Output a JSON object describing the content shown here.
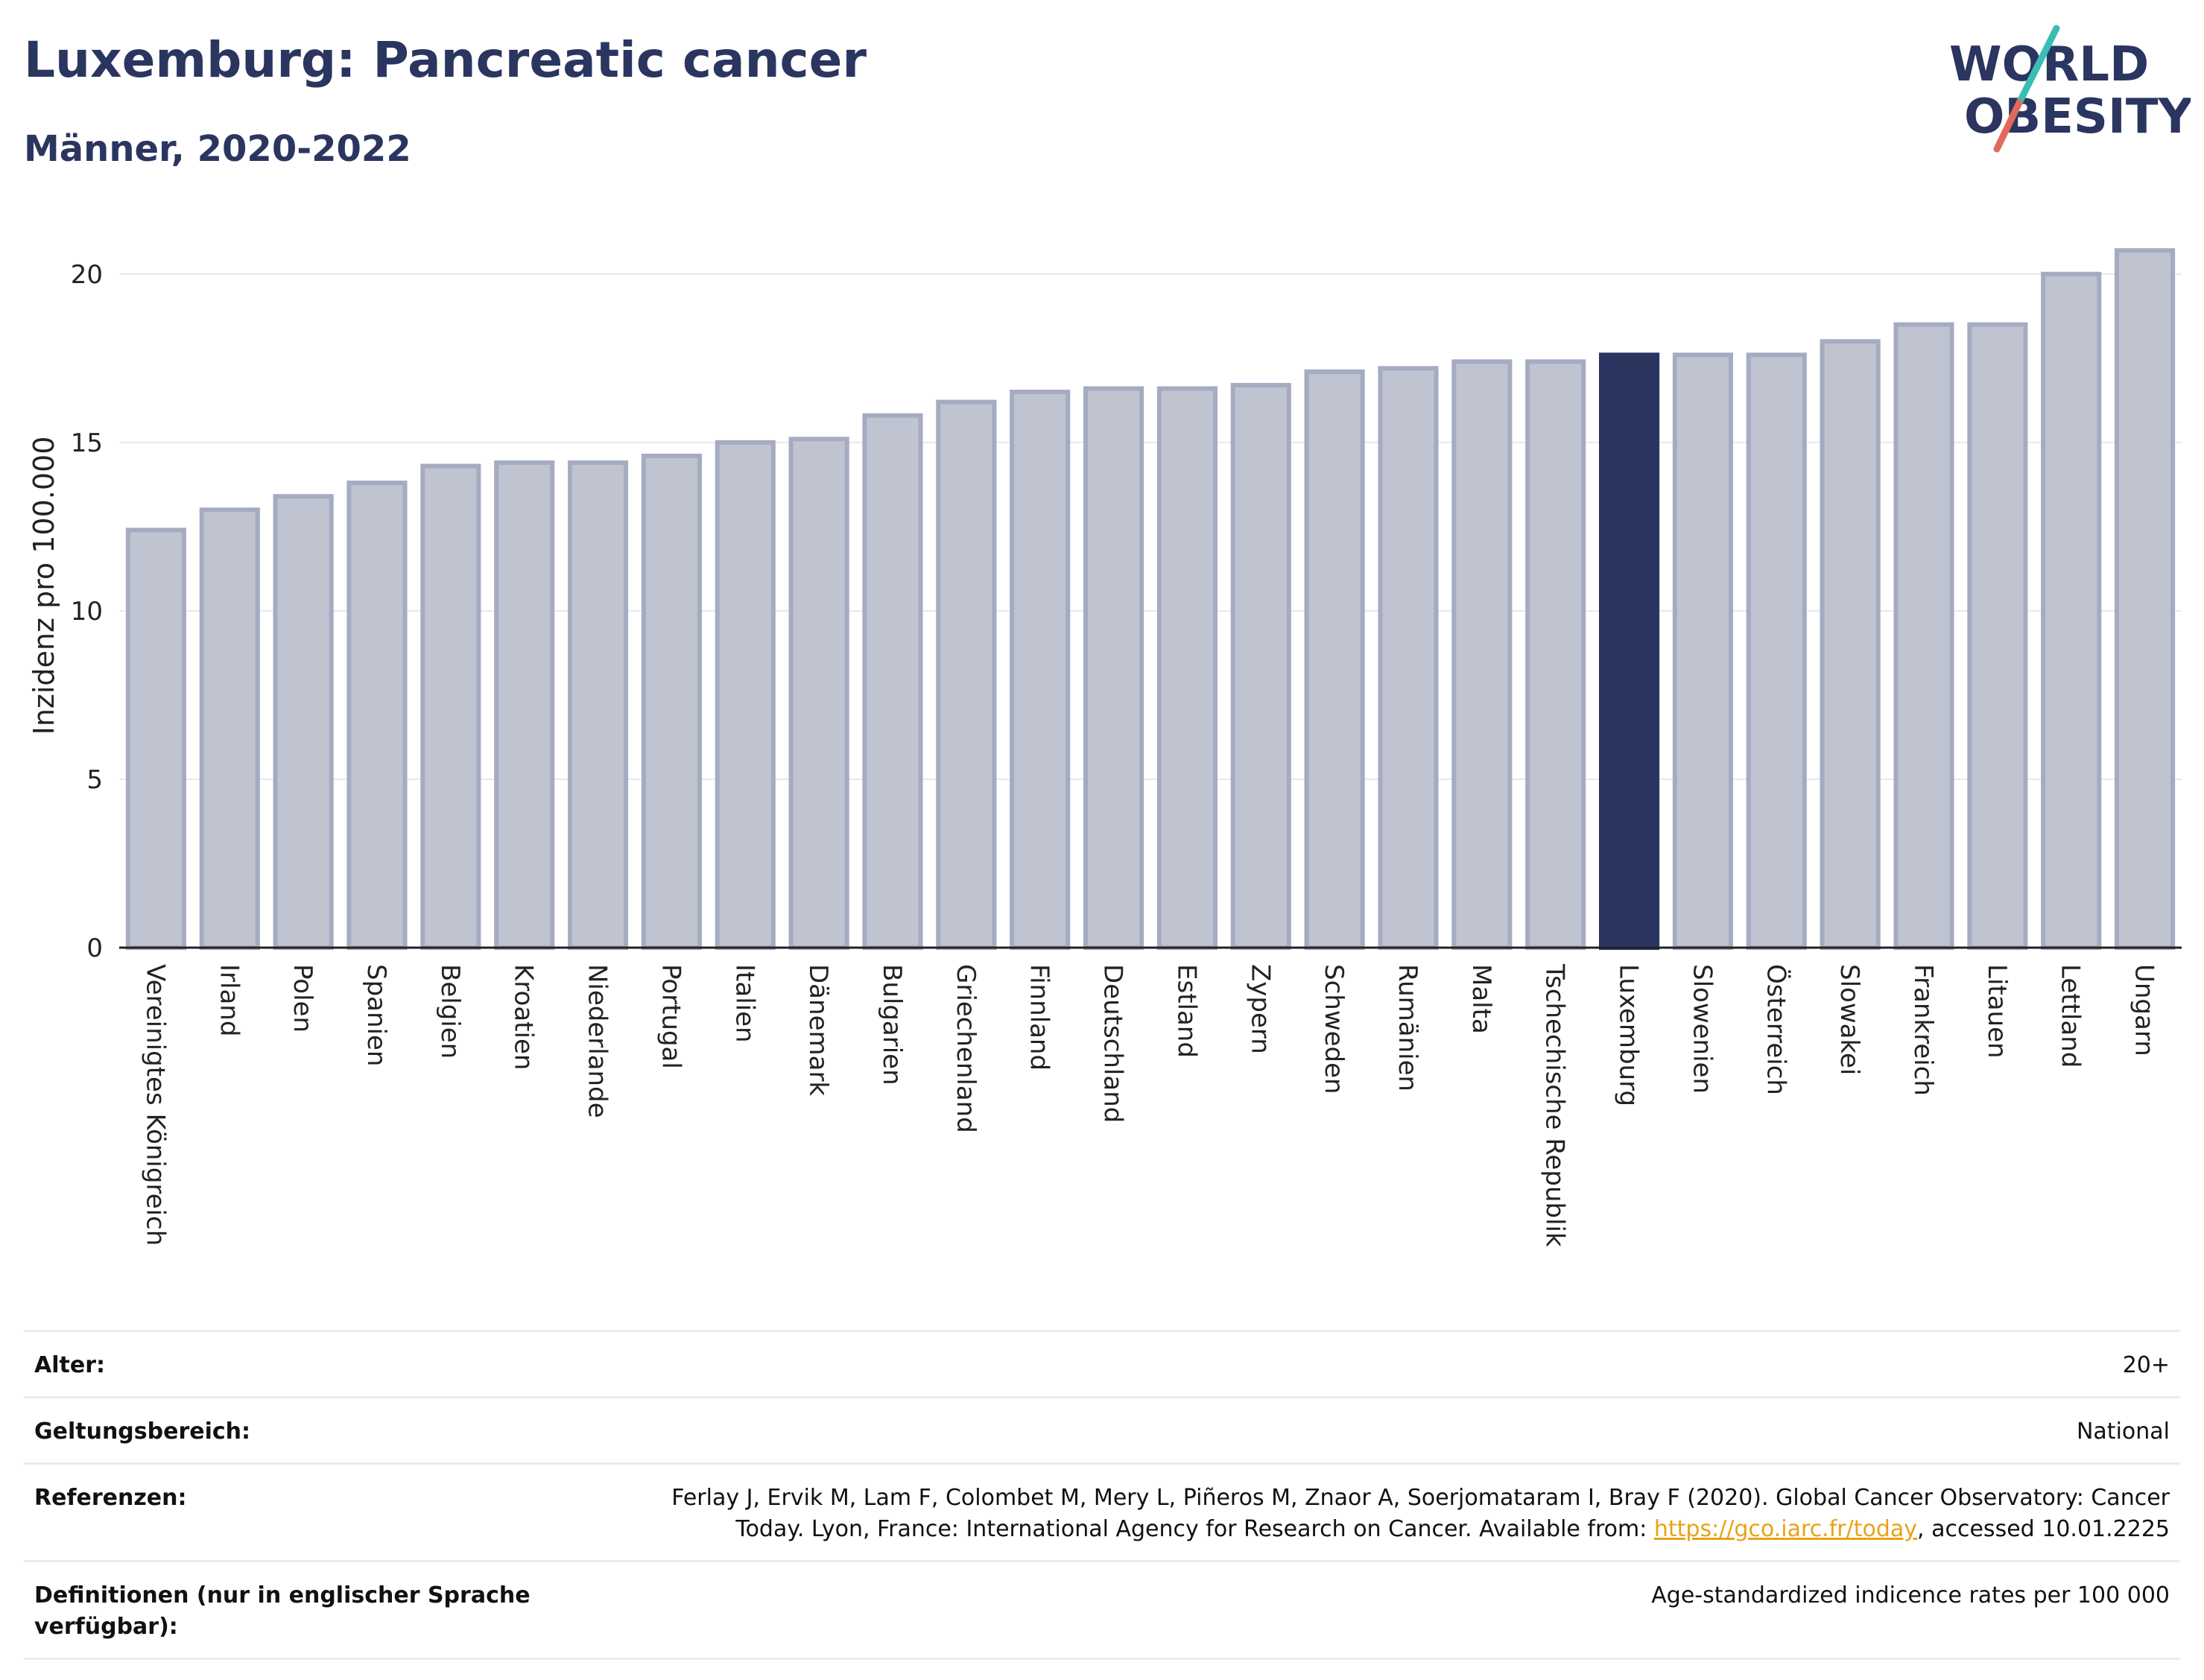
{
  "header": {
    "title": "Luxemburg: Pancreatic cancer",
    "subtitle": "Männer, 2020-2022"
  },
  "logo": {
    "line1": "WORLD",
    "line2": "OBESITY"
  },
  "colors": {
    "bar": "#c0c4d1",
    "bar_edge": "#a5abc1",
    "highlight": "#2a3560",
    "grid": "#e8e8ee",
    "logo_teal": "#3bbdb5",
    "logo_red": "#e26a5a"
  },
  "chart_data": {
    "type": "bar",
    "ylabel": "Inzidenz pro 100.000",
    "ylim": [
      0,
      21.5
    ],
    "yticks": [
      0,
      5,
      10,
      15,
      20
    ],
    "highlight": "Luxemburg",
    "categories": [
      "Vereinigtes Königreich",
      "Irland",
      "Polen",
      "Spanien",
      "Belgien",
      "Kroatien",
      "Niederlande",
      "Portugal",
      "Italien",
      "Dänemark",
      "Bulgarien",
      "Griechenland",
      "Finnland",
      "Deutschland",
      "Estland",
      "Zypern",
      "Schweden",
      "Rumänien",
      "Malta",
      "Tschechische Republik",
      "Luxemburg",
      "Slowenien",
      "Österreich",
      "Slowakei",
      "Frankreich",
      "Litauen",
      "Lettland",
      "Ungarn"
    ],
    "values": [
      12.4,
      13.0,
      13.4,
      13.8,
      14.3,
      14.4,
      14.4,
      14.6,
      15.0,
      15.1,
      15.8,
      16.2,
      16.5,
      16.6,
      16.6,
      16.7,
      17.1,
      17.2,
      17.4,
      17.4,
      17.6,
      17.6,
      17.6,
      18.0,
      18.5,
      18.5,
      20.0,
      20.7
    ]
  },
  "meta": [
    {
      "key": "Alter:",
      "value": "20+"
    },
    {
      "key": "Geltungsbereich:",
      "value": "National"
    },
    {
      "key": "Referenzen:",
      "value_pre": "Ferlay J, Ervik M, Lam F, Colombet M, Mery L, Piñeros M, Znaor A, Soerjomataram I, Bray F (2020). Global Cancer Observatory: Cancer Today. Lyon, France: International Agency for Research on Cancer. Available from: ",
      "link": "https://gco.iarc.fr/today",
      "value_post": ", accessed 10.01.2225"
    },
    {
      "key": "Definitionen (nur in englischer Sprache verfügbar):",
      "value": "Age-standardized indicence rates per 100 000"
    }
  ]
}
